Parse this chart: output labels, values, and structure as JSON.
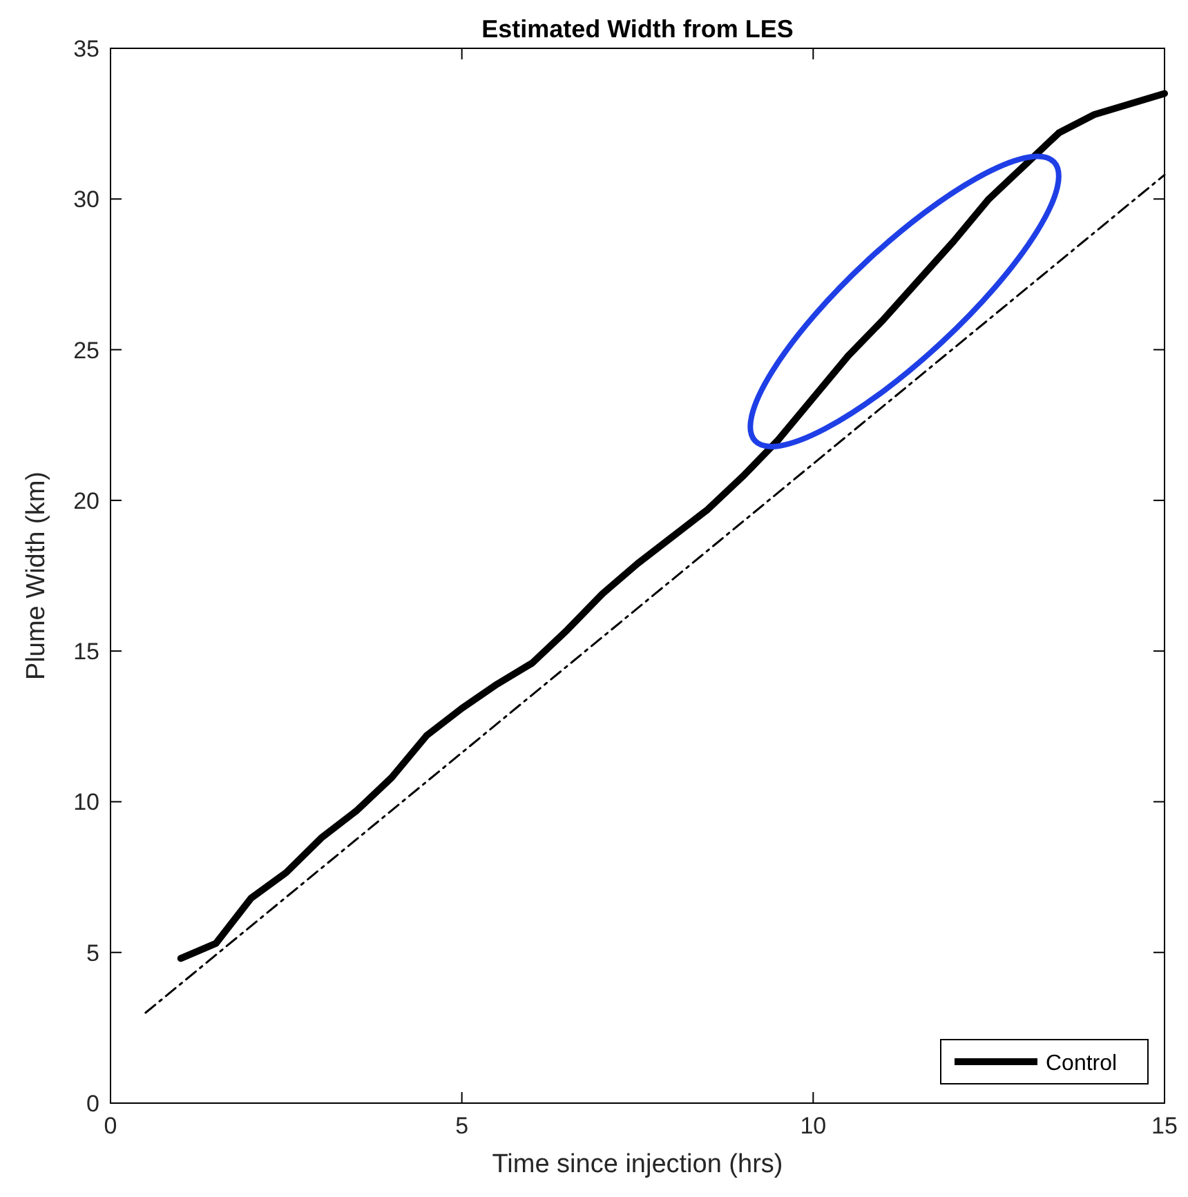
{
  "chart_data": {
    "type": "line",
    "title": "Estimated Width from LES",
    "xlabel": "Time since injection (hrs)",
    "ylabel": "Plume Width (km)",
    "xlim": [
      0,
      15
    ],
    "xticks": [
      0,
      5,
      10,
      15
    ],
    "ylim": [
      0,
      35
    ],
    "yticks": [
      0,
      5,
      10,
      15,
      20,
      25,
      30,
      35
    ],
    "grid": false,
    "legend": "bottom right",
    "series": [
      {
        "name": "Control",
        "color": "#000000",
        "line_style": "solid",
        "x": [
          1,
          1.5,
          2,
          2.5,
          3,
          3.5,
          4,
          4.5,
          5,
          5.5,
          6,
          6.5,
          7,
          7.5,
          8,
          8.5,
          9,
          9.5,
          10,
          10.5,
          11,
          11.5,
          12,
          12.5,
          13,
          13.5,
          14,
          15
        ],
        "values": [
          4.8,
          5.3,
          6.8,
          7.65,
          8.8,
          9.7,
          10.8,
          12.2,
          13.1,
          13.9,
          14.6,
          15.7,
          16.9,
          17.9,
          18.8,
          19.7,
          20.8,
          22,
          23.4,
          24.8,
          26,
          27.3,
          28.6,
          30,
          31.1,
          32.2,
          32.8,
          33.5
        ]
      },
      {
        "color": "#000000",
        "line_style": "dashed",
        "x": [
          0.5,
          15
        ],
        "values": [
          3,
          30.8
        ]
      }
    ]
  }
}
